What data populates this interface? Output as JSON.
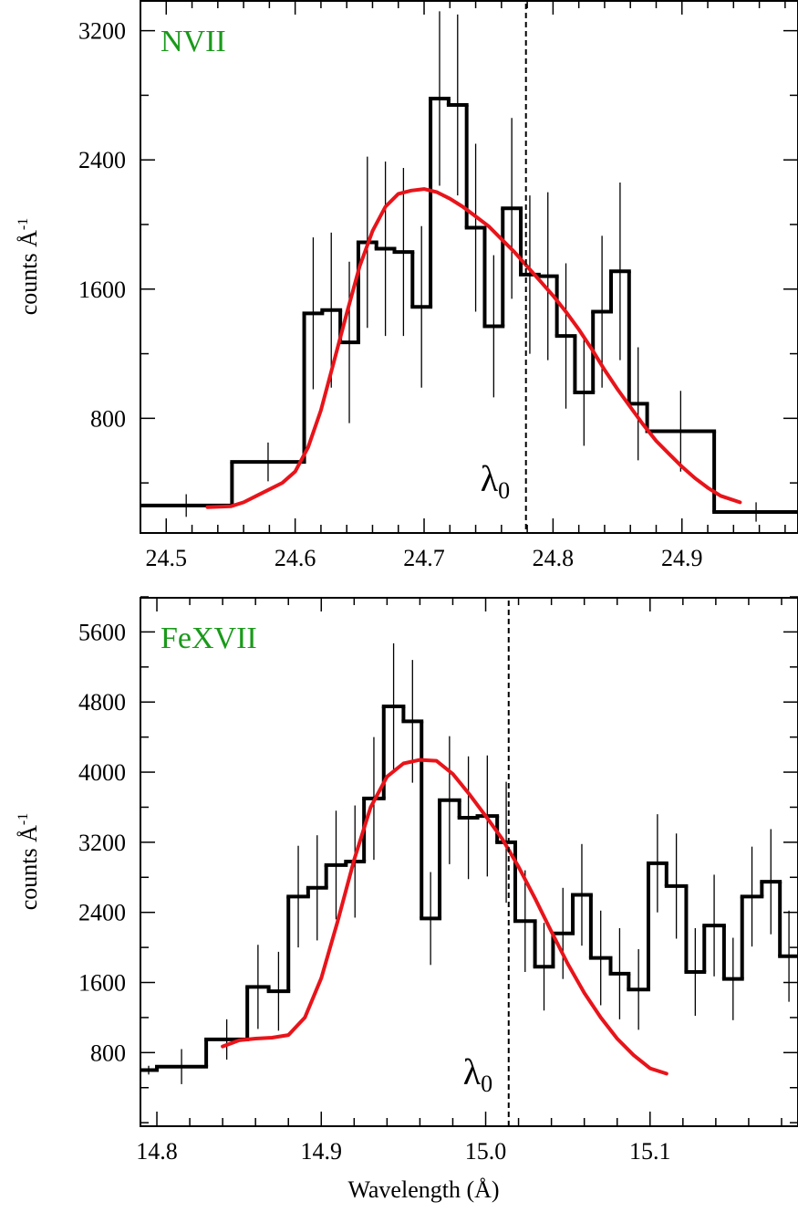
{
  "chart_data": [
    {
      "type": "line",
      "ion_label": "NVII",
      "label_color": "#1a9a1a",
      "model_color": "#e8141a",
      "data_color": "#000000",
      "ylabel_main": "counts Å",
      "ylabel_exp": "-1",
      "xlabel": "",
      "xlim": [
        24.48,
        24.99
      ],
      "ylim": [
        90,
        3390
      ],
      "xticks": [
        24.5,
        24.6,
        24.7,
        24.8,
        24.9
      ],
      "xtick_labels": [
        "24.5",
        "24.6",
        "24.7",
        "24.8",
        "24.9"
      ],
      "yticks": [
        800,
        1600,
        2400,
        3200
      ],
      "ytick_labels": [
        "800",
        "1600",
        "2400",
        "3200"
      ],
      "lambda0": 24.779,
      "lambda0_label": "λ",
      "lambda0_sub": "0",
      "grid": false,
      "series": [
        {
          "kind": "histogram",
          "edges": [
            24.48,
            24.551,
            24.607,
            24.621,
            24.635,
            24.649,
            24.663,
            24.677,
            24.691,
            24.705,
            24.719,
            24.733,
            24.747,
            24.761,
            24.775,
            24.789,
            24.803,
            24.817,
            24.831,
            24.845,
            24.859,
            24.873,
            24.925,
            24.99
          ],
          "values": [
            260,
            530,
            1450,
            1470,
            1270,
            1890,
            1850,
            1830,
            1490,
            2780,
            2740,
            1980,
            1370,
            2100,
            1690,
            1680,
            1310,
            960,
            1460,
            1710,
            890,
            720,
            220
          ],
          "errors": [
            70,
            120,
            470,
            480,
            500,
            530,
            540,
            520,
            500,
            540,
            560,
            520,
            440,
            560,
            490,
            520,
            450,
            330,
            470,
            550,
            350,
            250,
            60
          ]
        },
        {
          "kind": "model",
          "x": [
            24.532,
            24.55,
            24.56,
            24.57,
            24.58,
            24.59,
            24.6,
            24.61,
            24.62,
            24.63,
            24.64,
            24.65,
            24.66,
            24.67,
            24.68,
            24.69,
            24.7,
            24.71,
            24.72,
            24.73,
            24.74,
            24.75,
            24.76,
            24.77,
            24.78,
            24.79,
            24.8,
            24.81,
            24.82,
            24.83,
            24.84,
            24.85,
            24.86,
            24.87,
            24.88,
            24.89,
            24.9,
            24.91,
            24.92,
            24.93,
            24.945
          ],
          "y": [
            250,
            255,
            280,
            320,
            360,
            400,
            470,
            620,
            850,
            1150,
            1450,
            1740,
            1960,
            2110,
            2190,
            2210,
            2220,
            2200,
            2160,
            2110,
            2050,
            1990,
            1910,
            1830,
            1740,
            1650,
            1560,
            1460,
            1350,
            1230,
            1100,
            980,
            870,
            760,
            660,
            580,
            500,
            430,
            370,
            320,
            280
          ]
        }
      ]
    },
    {
      "type": "line",
      "ion_label": "FeXVII",
      "label_color": "#1a9a1a",
      "model_color": "#e8141a",
      "data_color": "#000000",
      "ylabel_main": "counts Å",
      "ylabel_exp": "-1",
      "xlabel": "Wavelength (Å)",
      "xlim": [
        14.79,
        15.19
      ],
      "ylim": [
        -40,
        6000
      ],
      "xticks": [
        14.8,
        14.9,
        15.0,
        15.1
      ],
      "xtick_labels": [
        "14.8",
        "14.9",
        "15.0",
        "15.1"
      ],
      "yticks": [
        800,
        1600,
        2400,
        3200,
        4000,
        4800,
        5600
      ],
      "ytick_labels": [
        "800",
        "1600",
        "2400",
        "3200",
        "4000",
        "4800",
        "5600"
      ],
      "lambda0": 15.014,
      "lambda0_label": "λ",
      "lambda0_sub": "0",
      "grid": false,
      "series": [
        {
          "kind": "histogram",
          "edges": [
            14.79,
            14.8,
            14.83,
            14.855,
            14.868,
            14.88,
            14.892,
            14.903,
            14.915,
            14.926,
            14.938,
            14.95,
            14.961,
            14.972,
            14.984,
            14.995,
            15.007,
            15.018,
            15.03,
            15.041,
            15.053,
            15.064,
            15.076,
            15.087,
            15.099,
            15.11,
            15.122,
            15.133,
            15.145,
            15.156,
            15.168,
            15.179,
            15.19
          ],
          "values": [
            600,
            640,
            950,
            1550,
            1500,
            2580,
            2680,
            2940,
            2980,
            3700,
            4750,
            4580,
            2330,
            3680,
            3480,
            3500,
            3200,
            2300,
            1780,
            2160,
            2600,
            1880,
            1700,
            1520,
            2960,
            2700,
            1720,
            2250,
            1640,
            2580,
            2750,
            1900
          ],
          "errors": [
            50,
            200,
            230,
            480,
            450,
            580,
            600,
            620,
            640,
            700,
            720,
            700,
            530,
            730,
            700,
            690,
            690,
            580,
            500,
            520,
            580,
            540,
            520,
            460,
            560,
            600,
            500,
            580,
            470,
            570,
            600,
            520
          ]
        },
        {
          "kind": "model",
          "x": [
            14.84,
            14.85,
            14.86,
            14.87,
            14.88,
            14.89,
            14.9,
            14.91,
            14.92,
            14.93,
            14.94,
            14.95,
            14.96,
            14.97,
            14.98,
            14.99,
            15.0,
            15.01,
            15.02,
            15.03,
            15.04,
            15.05,
            15.06,
            15.07,
            15.08,
            15.09,
            15.1,
            15.11
          ],
          "y": [
            870,
            940,
            960,
            970,
            1000,
            1200,
            1650,
            2300,
            3000,
            3600,
            3950,
            4100,
            4140,
            4130,
            3980,
            3750,
            3500,
            3240,
            2920,
            2560,
            2180,
            1810,
            1480,
            1200,
            960,
            770,
            620,
            560
          ]
        }
      ]
    }
  ]
}
